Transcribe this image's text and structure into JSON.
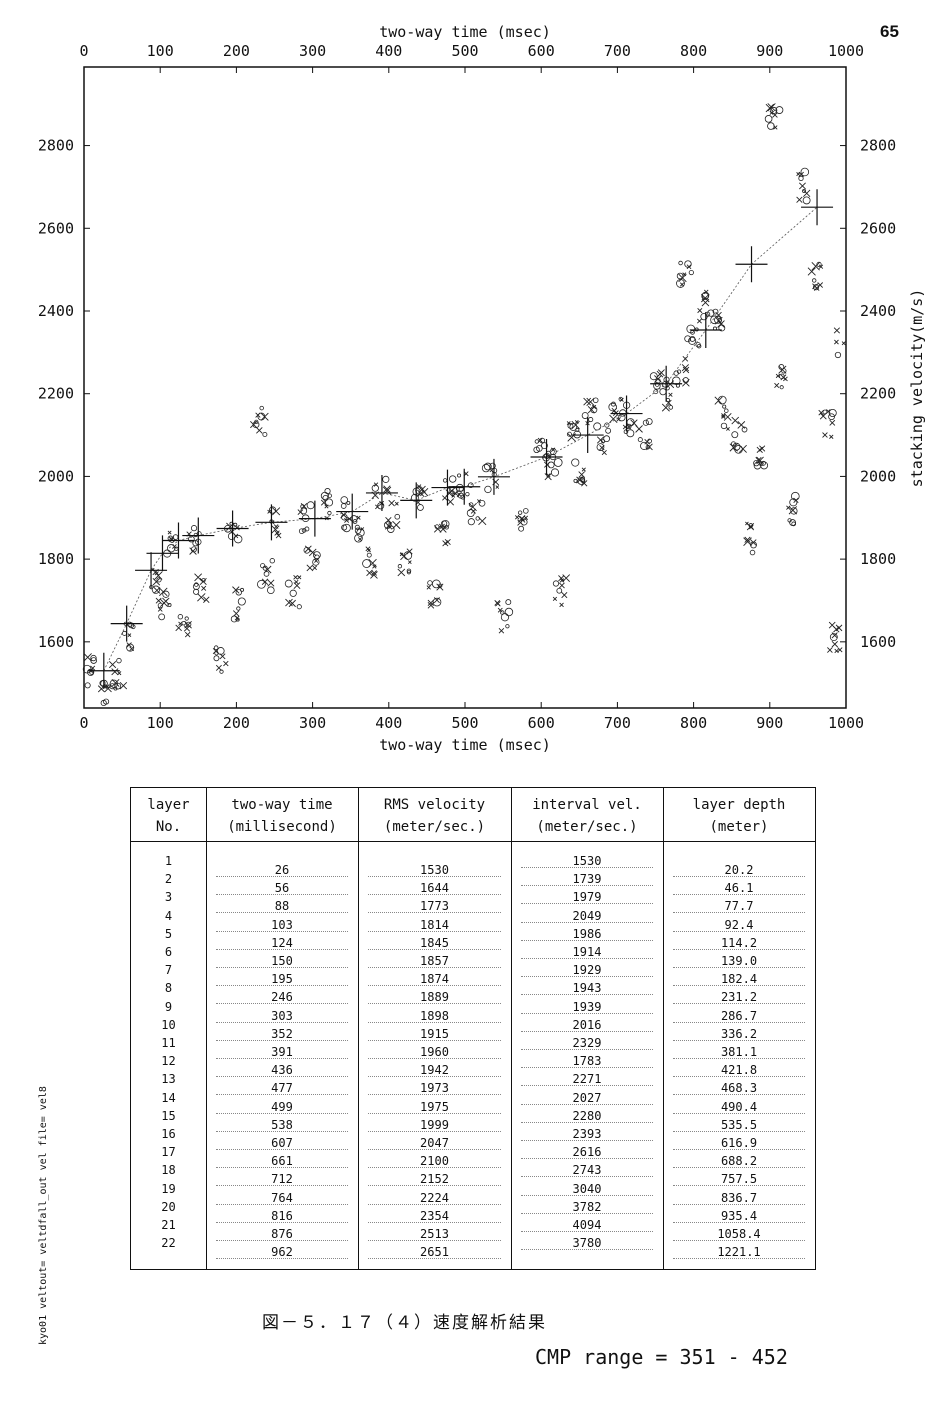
{
  "page_number": "65",
  "side_note": "kyo01 veltout= veltdfall_out vel file= vel8",
  "caption": "図－５．１７（４）速度解析結果",
  "cmp_range": "CMP range = 351 - 452",
  "chart_data": {
    "type": "scatter",
    "title": "",
    "xlabel_top": "two-way time (msec)",
    "xlabel_bottom": "two-way time (msec)",
    "ylabel": "stacking velocity(m/s)",
    "xlim": [
      0,
      1000
    ],
    "ylim": [
      1440,
      2990
    ],
    "xticks": [
      0,
      100,
      200,
      300,
      400,
      500,
      600,
      700,
      800,
      900,
      1000
    ],
    "yticks": [
      1600,
      1800,
      2000,
      2200,
      2400,
      2600,
      2800
    ],
    "grid": false,
    "picks": {
      "name": "velocity picks",
      "x": [
        26,
        56,
        88,
        103,
        124,
        150,
        195,
        246,
        303,
        352,
        391,
        436,
        477,
        499,
        538,
        607,
        661,
        712,
        764,
        816,
        876,
        962
      ],
      "y": [
        1530,
        1644,
        1773,
        1814,
        1845,
        1857,
        1874,
        1889,
        1898,
        1915,
        1960,
        1942,
        1973,
        1975,
        1999,
        2047,
        2100,
        2152,
        2224,
        2354,
        2513,
        2651
      ]
    },
    "semblance_clusters": [
      {
        "x": 10,
        "y": 1530
      },
      {
        "x": 30,
        "y": 1480
      },
      {
        "x": 45,
        "y": 1520
      },
      {
        "x": 60,
        "y": 1610
      },
      {
        "x": 95,
        "y": 1760
      },
      {
        "x": 105,
        "y": 1690
      },
      {
        "x": 115,
        "y": 1830
      },
      {
        "x": 130,
        "y": 1650
      },
      {
        "x": 145,
        "y": 1850
      },
      {
        "x": 155,
        "y": 1720
      },
      {
        "x": 180,
        "y": 1560
      },
      {
        "x": 195,
        "y": 1870
      },
      {
        "x": 205,
        "y": 1690
      },
      {
        "x": 230,
        "y": 2130
      },
      {
        "x": 240,
        "y": 1760
      },
      {
        "x": 250,
        "y": 1890
      },
      {
        "x": 275,
        "y": 1720
      },
      {
        "x": 290,
        "y": 1900
      },
      {
        "x": 300,
        "y": 1810
      },
      {
        "x": 315,
        "y": 1930
      },
      {
        "x": 345,
        "y": 1910
      },
      {
        "x": 360,
        "y": 1880
      },
      {
        "x": 375,
        "y": 1790
      },
      {
        "x": 390,
        "y": 1960
      },
      {
        "x": 405,
        "y": 1900
      },
      {
        "x": 420,
        "y": 1790
      },
      {
        "x": 440,
        "y": 1940
      },
      {
        "x": 460,
        "y": 1720
      },
      {
        "x": 470,
        "y": 1850
      },
      {
        "x": 480,
        "y": 1970
      },
      {
        "x": 500,
        "y": 1980
      },
      {
        "x": 515,
        "y": 1910
      },
      {
        "x": 535,
        "y": 2000
      },
      {
        "x": 550,
        "y": 1660
      },
      {
        "x": 575,
        "y": 1890
      },
      {
        "x": 600,
        "y": 2060
      },
      {
        "x": 615,
        "y": 2030
      },
      {
        "x": 625,
        "y": 1720
      },
      {
        "x": 640,
        "y": 2100
      },
      {
        "x": 650,
        "y": 2010
      },
      {
        "x": 665,
        "y": 2150
      },
      {
        "x": 680,
        "y": 2090
      },
      {
        "x": 700,
        "y": 2170
      },
      {
        "x": 715,
        "y": 2140
      },
      {
        "x": 735,
        "y": 2100
      },
      {
        "x": 755,
        "y": 2220
      },
      {
        "x": 770,
        "y": 2200
      },
      {
        "x": 785,
        "y": 2250
      },
      {
        "x": 790,
        "y": 2480
      },
      {
        "x": 800,
        "y": 2340
      },
      {
        "x": 815,
        "y": 2410
      },
      {
        "x": 830,
        "y": 2380
      },
      {
        "x": 840,
        "y": 2150
      },
      {
        "x": 860,
        "y": 2100
      },
      {
        "x": 875,
        "y": 1850
      },
      {
        "x": 890,
        "y": 2060
      },
      {
        "x": 905,
        "y": 2880
      },
      {
        "x": 915,
        "y": 2250
      },
      {
        "x": 930,
        "y": 1920
      },
      {
        "x": 945,
        "y": 2700
      },
      {
        "x": 960,
        "y": 2480
      },
      {
        "x": 975,
        "y": 2130
      },
      {
        "x": 985,
        "y": 1610
      },
      {
        "x": 995,
        "y": 2320
      }
    ]
  },
  "table": {
    "headers": [
      {
        "line1": "layer",
        "line2": "No."
      },
      {
        "line1": "two-way time",
        "line2": "(millisecond)"
      },
      {
        "line1": "RMS velocity",
        "line2": "(meter/sec.)"
      },
      {
        "line1": "interval vel.",
        "line2": "(meter/sec.)"
      },
      {
        "line1": "layer depth",
        "line2": "(meter)"
      }
    ],
    "layer_no": [
      "1",
      "2",
      "3",
      "4",
      "5",
      "6",
      "7",
      "8",
      "9",
      "10",
      "11",
      "12",
      "13",
      "14",
      "15",
      "16",
      "17",
      "18",
      "19",
      "20",
      "21",
      "22"
    ],
    "two_way_time": [
      "26",
      "56",
      "88",
      "103",
      "124",
      "150",
      "195",
      "246",
      "303",
      "352",
      "391",
      "436",
      "477",
      "499",
      "538",
      "607",
      "661",
      "712",
      "764",
      "816",
      "876",
      "962"
    ],
    "rms_velocity": [
      "1530",
      "1644",
      "1773",
      "1814",
      "1845",
      "1857",
      "1874",
      "1889",
      "1898",
      "1915",
      "1960",
      "1942",
      "1973",
      "1975",
      "1999",
      "2047",
      "2100",
      "2152",
      "2224",
      "2354",
      "2513",
      "2651"
    ],
    "interval_vel": [
      "1530",
      "1739",
      "1979",
      "2049",
      "1986",
      "1914",
      "1929",
      "1943",
      "1939",
      "2016",
      "2329",
      "1783",
      "2271",
      "2027",
      "2280",
      "2393",
      "2616",
      "2743",
      "3040",
      "3782",
      "4094",
      "3780"
    ],
    "layer_depth": [
      "20.2",
      "46.1",
      "77.7",
      "92.4",
      "114.2",
      "139.0",
      "182.4",
      "231.2",
      "286.7",
      "336.2",
      "381.1",
      "421.8",
      "468.3",
      "490.4",
      "535.5",
      "616.9",
      "688.2",
      "757.5",
      "836.7",
      "935.4",
      "1058.4",
      "1221.1"
    ]
  }
}
